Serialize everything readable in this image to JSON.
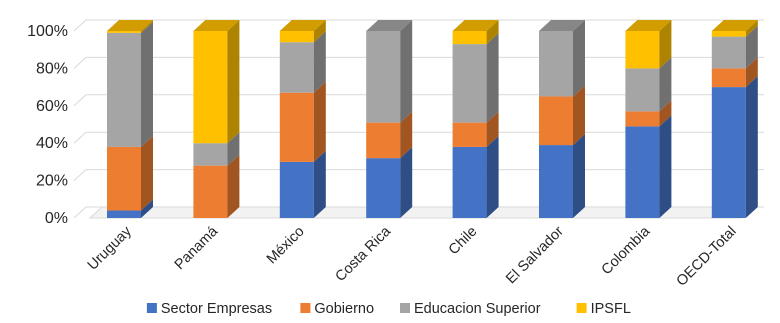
{
  "chart_data": {
    "type": "bar",
    "stacked": true,
    "orientation": "vertical",
    "percent_stacked": true,
    "style": "3d",
    "categories": [
      "Uruguay",
      "Panamá",
      "México",
      "Costa Rica",
      "Chile",
      "El Salvador",
      "Colombia",
      "OECD-Total"
    ],
    "series": [
      {
        "name": "Sector Empresas",
        "color": "#4472C4",
        "values": [
          4,
          0,
          30,
          32,
          38,
          39,
          49,
          70
        ]
      },
      {
        "name": "Gobierno",
        "color": "#ED7D31",
        "values": [
          34,
          28,
          37,
          19,
          13,
          26,
          8,
          10
        ]
      },
      {
        "name": "Educacion Superior",
        "color": "#A5A5A5",
        "values": [
          61,
          12,
          27,
          49,
          42,
          35,
          23,
          17
        ]
      },
      {
        "name": "IPSFL",
        "color": "#FFC000",
        "values": [
          1,
          60,
          6,
          0,
          7,
          0,
          20,
          3
        ]
      }
    ],
    "ylim": [
      0,
      100
    ],
    "yticks": [
      "0%",
      "20%",
      "40%",
      "60%",
      "80%",
      "100%"
    ],
    "xlabel": "",
    "ylabel": "",
    "title": "",
    "grid": true,
    "legend_position": "bottom"
  }
}
